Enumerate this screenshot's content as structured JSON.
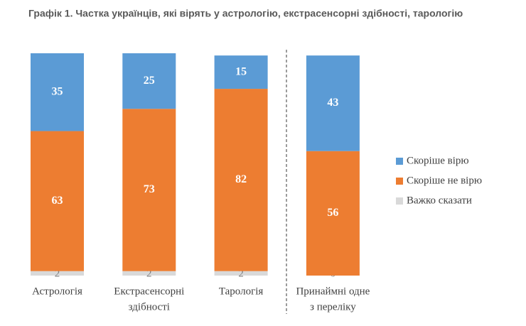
{
  "chart_data": {
    "type": "stacked-bar",
    "title": "Графік 1. Частка українців, які вірять у астрологію, екстрасенсорні здібності, тарологію",
    "categories": [
      [
        "Астрологія"
      ],
      [
        "Екстрасенсорні",
        "здібності"
      ],
      [
        "Тарологія"
      ],
      [
        "Принаймні одне",
        "з переліку"
      ]
    ],
    "series": [
      {
        "name": "Скоріше вірю",
        "color": "#5b9bd5",
        "values": [
          35,
          25,
          15,
          43
        ]
      },
      {
        "name": "Скоріше не вірю",
        "color": "#ed7d31",
        "values": [
          63,
          73,
          82,
          56
        ]
      },
      {
        "name": "Важко сказати",
        "color": "#d9d9d9",
        "values": [
          2,
          2,
          2,
          0
        ]
      }
    ]
  }
}
